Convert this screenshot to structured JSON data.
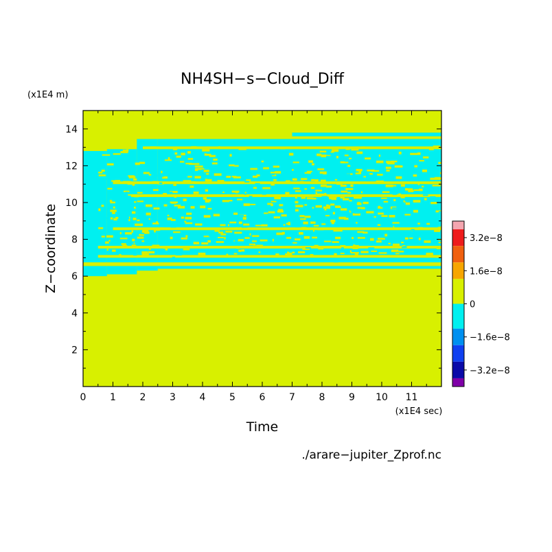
{
  "chart_data": {
    "type": "heatmap",
    "title": "NH4SH−s−Cloud_Diff",
    "xlabel": "Time",
    "ylabel": "Z−coordinate",
    "x_unit": "(x1E4 sec)",
    "y_unit": "(x1E4 m)",
    "source_file": "./arare−jupiter_Zprof.nc",
    "xlim": [
      0,
      12
    ],
    "ylim": [
      0,
      15
    ],
    "x_ticks": [
      "0",
      "1",
      "2",
      "3",
      "4",
      "5",
      "6",
      "7",
      "8",
      "9",
      "10",
      "11"
    ],
    "y_ticks": [
      "2",
      "4",
      "6",
      "8",
      "10",
      "12",
      "14"
    ],
    "grid": false,
    "colorbar": {
      "position": "right",
      "levels": [
        {
          "range": [
            3.6e-08,
            4e-08
          ],
          "color": "#f4a6b0"
        },
        {
          "range": [
            2.8e-08,
            3.6e-08
          ],
          "color": "#ee1c1c"
        },
        {
          "range": [
            2e-08,
            2.8e-08
          ],
          "color": "#f0600f"
        },
        {
          "range": [
            1.2e-08,
            2e-08
          ],
          "color": "#f7a600"
        },
        {
          "range": [
            0,
            1.2e-08
          ],
          "color": "#d8f000"
        },
        {
          "range": [
            -1.2e-08,
            0
          ],
          "color": "#00f0f0"
        },
        {
          "range": [
            -2e-08,
            -1.2e-08
          ],
          "color": "#0090f0"
        },
        {
          "range": [
            -2.8e-08,
            -2e-08
          ],
          "color": "#1040f0"
        },
        {
          "range": [
            -3.6e-08,
            -2.8e-08
          ],
          "color": "#0a0aa8"
        },
        {
          "range": [
            -4e-08,
            -3.6e-08
          ],
          "color": "#8000a8"
        }
      ],
      "tick_labels": [
        "3.2e−8",
        "1.6e−8",
        "0",
        "−1.6e−8",
        "−3.2e−8"
      ]
    },
    "fields": {
      "background_value_sign": "zero_or_positive",
      "background_color": "#d8f000",
      "negative_color": "#00f0f0"
    },
    "negative_regions": [
      {
        "x": [
          0.0,
          0.8
        ],
        "y": [
          6.0,
          12.8
        ]
      },
      {
        "x": [
          0.8,
          1.8
        ],
        "y": [
          6.1,
          12.9
        ]
      },
      {
        "x": [
          1.8,
          2.5
        ],
        "y": [
          6.3,
          13.5
        ]
      },
      {
        "x": [
          2.5,
          7.0
        ],
        "y": [
          6.4,
          13.6
        ]
      },
      {
        "x": [
          7.0,
          12.0
        ],
        "y": [
          6.4,
          13.8
        ]
      }
    ],
    "positive_bands": [
      {
        "x": [
          0.0,
          12.0
        ],
        "y": [
          13.45,
          13.6
        ]
      },
      {
        "x": [
          2.0,
          12.0
        ],
        "y": [
          12.9,
          13.05
        ]
      },
      {
        "x": [
          1.0,
          12.0
        ],
        "y": [
          11.0,
          11.15
        ]
      },
      {
        "x": [
          1.5,
          12.0
        ],
        "y": [
          10.3,
          10.45
        ]
      },
      {
        "x": [
          1.0,
          12.0
        ],
        "y": [
          8.5,
          8.65
        ]
      },
      {
        "x": [
          0.5,
          12.0
        ],
        "y": [
          7.5,
          7.65
        ]
      },
      {
        "x": [
          0.5,
          12.0
        ],
        "y": [
          7.0,
          7.15
        ]
      },
      {
        "x": [
          0.0,
          12.0
        ],
        "y": [
          6.55,
          6.75
        ]
      }
    ]
  }
}
